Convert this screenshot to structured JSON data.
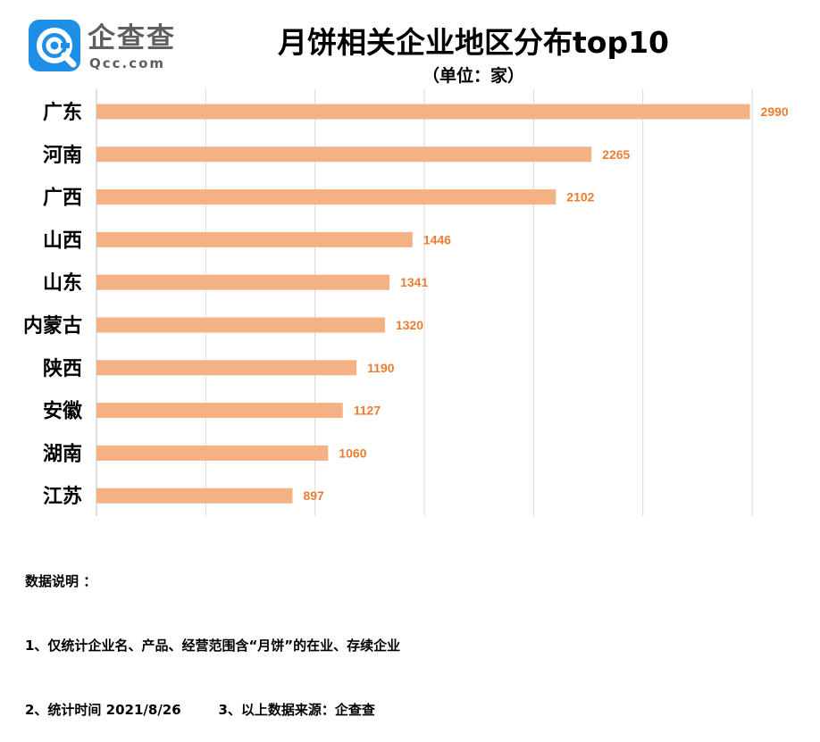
{
  "logo": {
    "name_cn": "企查查",
    "domain": "Qcc.com",
    "brand_color": "#1f8ee6"
  },
  "title": "月饼相关企业地区分布top10",
  "subtitle": "（单位：家）",
  "chart_data": {
    "type": "bar",
    "orientation": "horizontal",
    "title": "月饼相关企业地区分布top10",
    "unit": "（单位：家）",
    "categories": [
      "广东",
      "河南",
      "广西",
      "山西",
      "山东",
      "内蒙古",
      "陕西",
      "安徽",
      "湖南",
      "江苏"
    ],
    "values": [
      2990,
      2265,
      2102,
      1446,
      1341,
      1320,
      1190,
      1127,
      1060,
      897
    ],
    "xlim": [
      0,
      3000
    ],
    "grid": true,
    "bar_color": "#f4b183",
    "label_color": "#ed7d31"
  },
  "notes": {
    "heading": "数据说明 ：",
    "line1": "1、仅统计企业名、产品、经营范围含“月饼”的在业、存续企业",
    "line2": "2、统计时间 2021/8/26        3、以上数据来源：企查查"
  }
}
